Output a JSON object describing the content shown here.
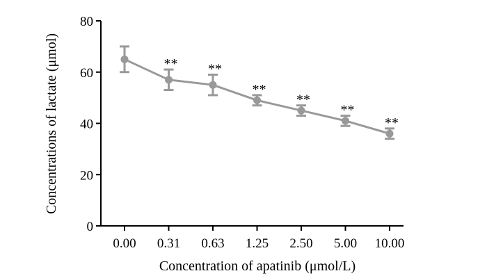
{
  "chart_data": {
    "type": "line",
    "title": "",
    "xlabel": "Concentration of apatinib (μmol/L)",
    "ylabel": "Concentrations of lactate (μmol)",
    "categories": [
      "0.00",
      "0.31",
      "0.63",
      "1.25",
      "2.50",
      "5.00",
      "10.00"
    ],
    "series": [
      {
        "name": "Lactate",
        "values": [
          65,
          57,
          55,
          49,
          45,
          41,
          36
        ],
        "errors": [
          5,
          4,
          4,
          2,
          2,
          2,
          2
        ],
        "color": "#999999"
      }
    ],
    "significance": [
      "",
      "**",
      "**",
      "**",
      "**",
      "**",
      "**"
    ],
    "ylim": [
      0,
      80
    ],
    "yticks": [
      0,
      20,
      40,
      60,
      80
    ],
    "grid": false,
    "legend": "none"
  }
}
